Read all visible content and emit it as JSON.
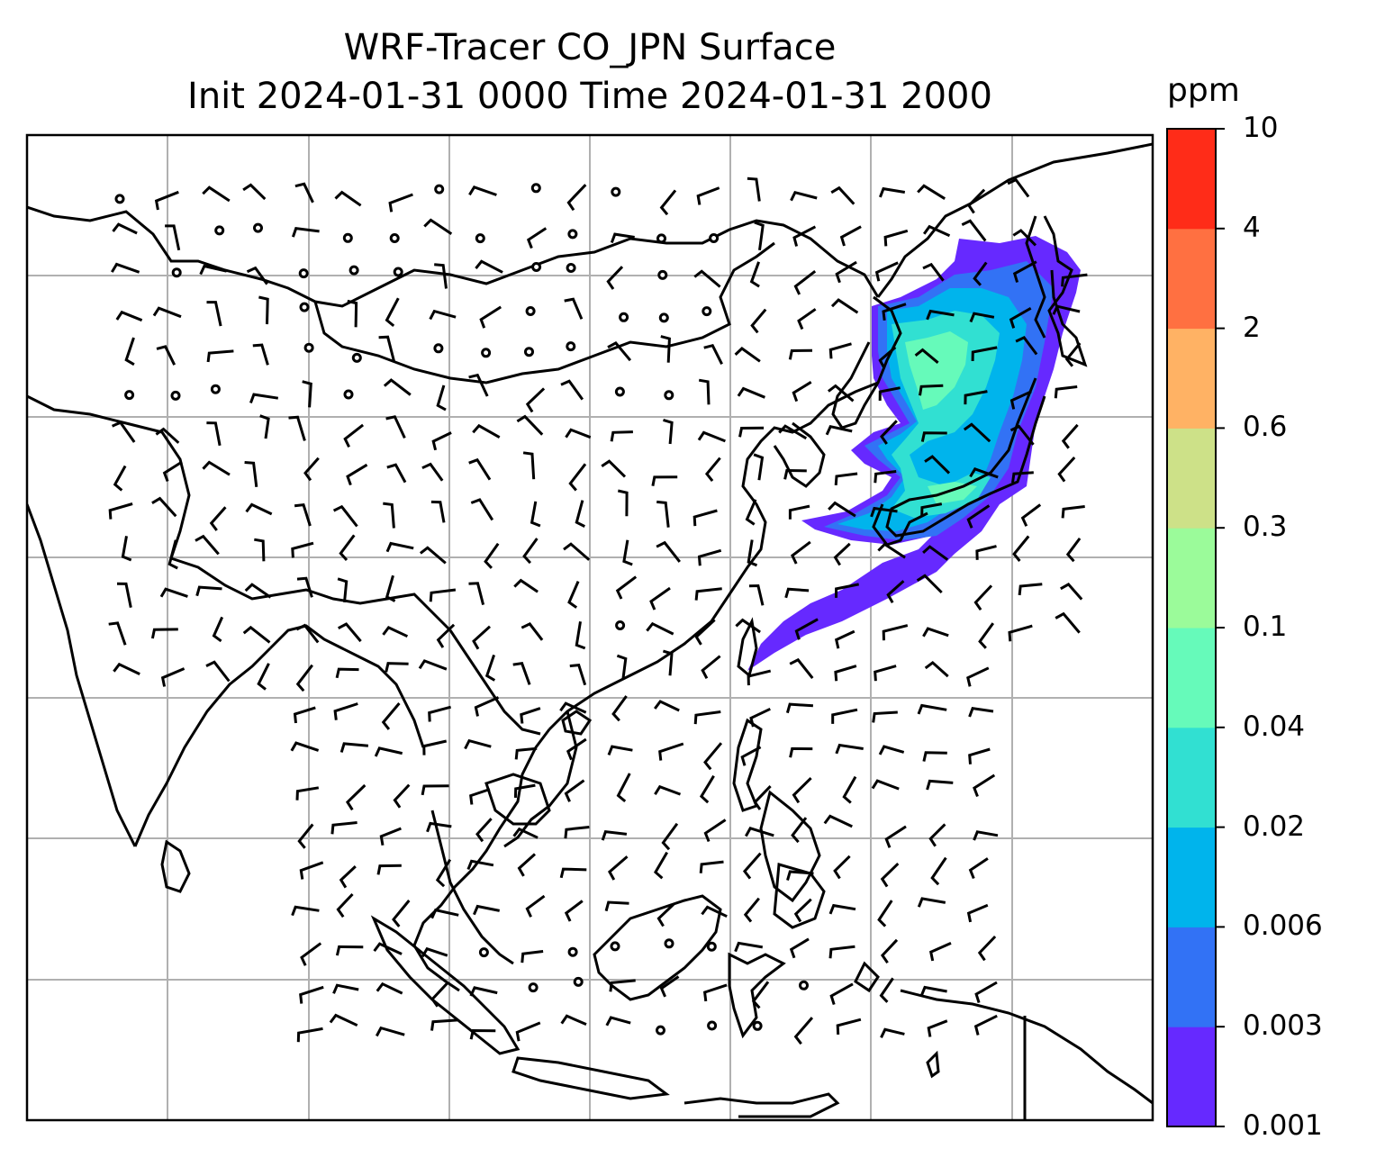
{
  "title": {
    "line1": "WRF-Tracer CO_JPN Surface",
    "line2": "Init 2024-01-31 0000 Time 2024-01-31 2000"
  },
  "colorbar": {
    "unit": "ppm",
    "levels": [
      "0.001",
      "0.003",
      "0.006",
      "0.02",
      "0.04",
      "0.1",
      "0.3",
      "0.6",
      "2",
      "4",
      "10"
    ],
    "colors": [
      "#6629ff",
      "#3272f5",
      "#00b4ec",
      "#31e0d2",
      "#66faba",
      "#9bfb9a",
      "#cde188",
      "#ffb264",
      "#ff7041",
      "#ff2c18"
    ]
  },
  "map": {
    "gridlines": true,
    "wind_barbs": true,
    "plume_region": "east of Japan"
  }
}
